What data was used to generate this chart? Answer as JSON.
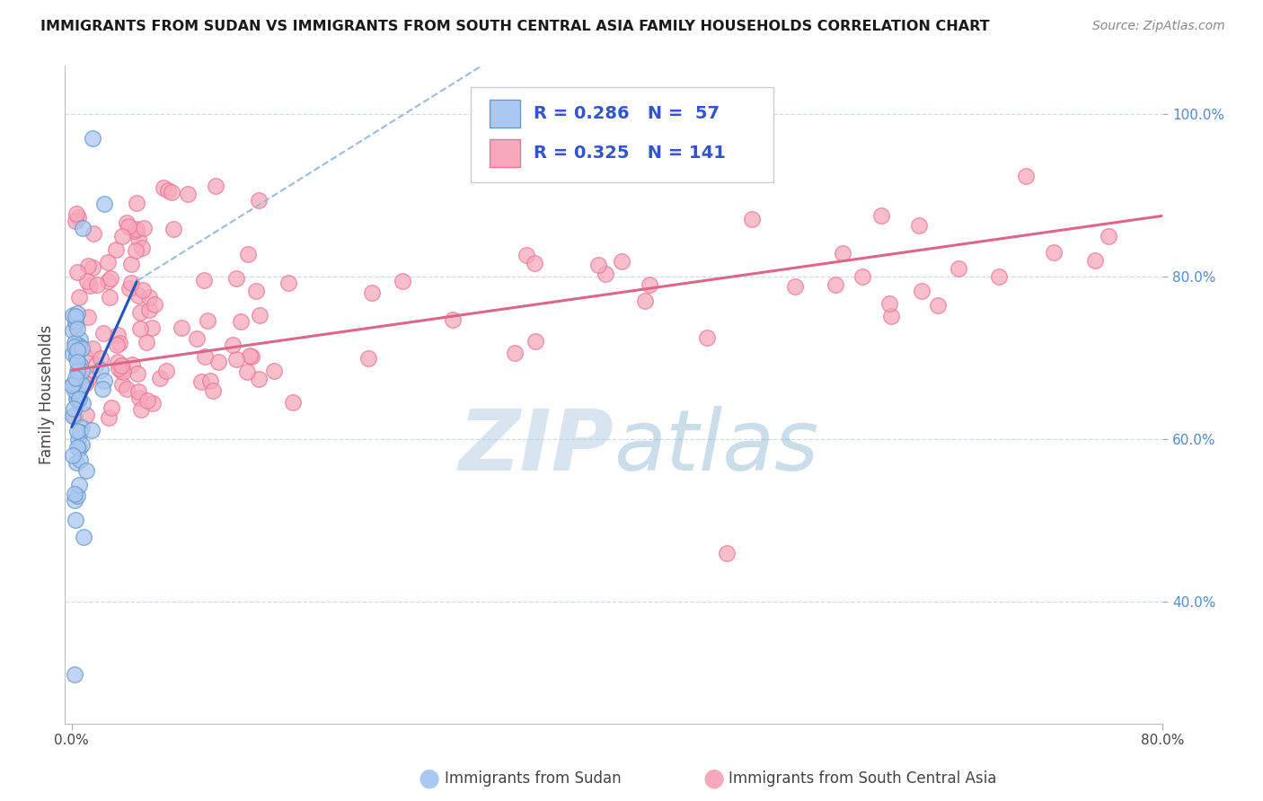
{
  "title": "IMMIGRANTS FROM SUDAN VS IMMIGRANTS FROM SOUTH CENTRAL ASIA FAMILY HOUSEHOLDS CORRELATION CHART",
  "source": "Source: ZipAtlas.com",
  "ylabel": "Family Households",
  "xlim": [
    -0.005,
    0.8
  ],
  "ylim": [
    0.25,
    1.06
  ],
  "right_yticks": [
    0.4,
    0.6,
    0.8,
    1.0
  ],
  "right_yticklabels": [
    "40.0%",
    "60.0%",
    "80.0%",
    "100.0%"
  ],
  "sudan_color": "#aac8f0",
  "sudan_edge": "#6699cc",
  "asia_color": "#f8a8bc",
  "asia_edge": "#e87898",
  "sudan_line_color": "#2255bb",
  "sudan_line_dash_color": "#99bbdd",
  "asia_line_color": "#dd6688",
  "watermark_zip": "ZIP",
  "watermark_atlas": "atlas"
}
